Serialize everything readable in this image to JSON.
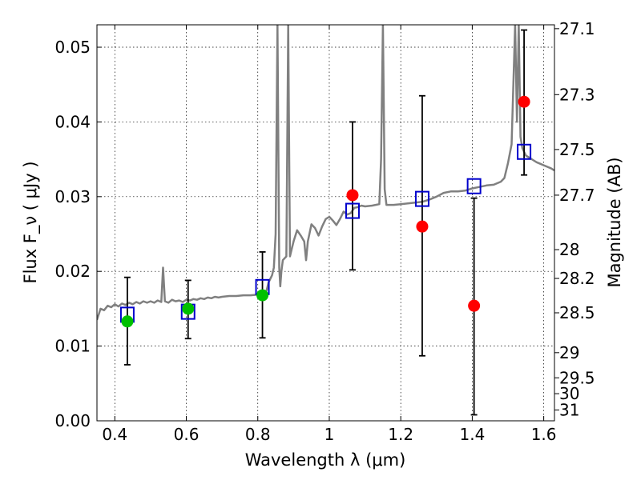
{
  "chart_data": {
    "type": "scatter",
    "xlabel": "Wavelength  λ (μm)",
    "ylabel": "Flux  F_ν  ( μJy )",
    "y2label": "Magnitude (AB)",
    "xlim": [
      0.35,
      1.63
    ],
    "ylim": [
      0.0,
      0.053
    ],
    "grid": true,
    "x_ticks": [
      0.4,
      0.6,
      0.8,
      1.0,
      1.2,
      1.4,
      1.6
    ],
    "x_tick_labels": [
      "0.4",
      "0.6",
      "0.8",
      "1",
      "1.2",
      "1.4",
      "1.6"
    ],
    "y_ticks": [
      0.0,
      0.01,
      0.02,
      0.03,
      0.04,
      0.05
    ],
    "y_tick_labels": [
      "0.00",
      "0.01",
      "0.02",
      "0.03",
      "0.04",
      "0.05"
    ],
    "magnitude_ticks": [
      "27.1",
      "27.3",
      "27.5",
      "27.7",
      "28",
      "28.2",
      "28.5",
      "29",
      "29.5",
      "30",
      "31"
    ],
    "colors": {
      "spectrum": "#808080",
      "green_points": "#00c000",
      "red_points": "#ff0000",
      "model_squares": "#0000cc",
      "error_bars": "#000000"
    },
    "spectrum": {
      "x": [
        0.35,
        0.36,
        0.37,
        0.38,
        0.39,
        0.4,
        0.41,
        0.42,
        0.43,
        0.44,
        0.45,
        0.46,
        0.47,
        0.48,
        0.49,
        0.5,
        0.51,
        0.52,
        0.53,
        0.535,
        0.54,
        0.55,
        0.56,
        0.57,
        0.58,
        0.59,
        0.6,
        0.61,
        0.62,
        0.63,
        0.64,
        0.65,
        0.66,
        0.67,
        0.68,
        0.69,
        0.7,
        0.72,
        0.74,
        0.76,
        0.78,
        0.8,
        0.81,
        0.82,
        0.825,
        0.83,
        0.84,
        0.845,
        0.85,
        0.855,
        0.86,
        0.863,
        0.866,
        0.87,
        0.88,
        0.885,
        0.89,
        0.895,
        0.9,
        0.91,
        0.92,
        0.93,
        0.935,
        0.94,
        0.95,
        0.96,
        0.97,
        0.98,
        0.99,
        1.0,
        1.01,
        1.02,
        1.03,
        1.04,
        1.05,
        1.06,
        1.07,
        1.08,
        1.09,
        1.1,
        1.12,
        1.14,
        1.145,
        1.15,
        1.155,
        1.16,
        1.18,
        1.2,
        1.22,
        1.24,
        1.26,
        1.28,
        1.3,
        1.32,
        1.34,
        1.36,
        1.38,
        1.4,
        1.42,
        1.44,
        1.46,
        1.48,
        1.49,
        1.5,
        1.51,
        1.52,
        1.525,
        1.53,
        1.535,
        1.54,
        1.55,
        1.56,
        1.57,
        1.58,
        1.59,
        1.6,
        1.61,
        1.62,
        1.63
      ],
      "y": [
        0.0135,
        0.015,
        0.0148,
        0.0154,
        0.0152,
        0.0156,
        0.0153,
        0.0157,
        0.0155,
        0.0158,
        0.0156,
        0.0159,
        0.0157,
        0.016,
        0.0158,
        0.016,
        0.0158,
        0.0161,
        0.0159,
        0.0205,
        0.016,
        0.0158,
        0.0162,
        0.016,
        0.0161,
        0.0159,
        0.0162,
        0.0161,
        0.0163,
        0.0162,
        0.0164,
        0.0163,
        0.0165,
        0.0164,
        0.0166,
        0.0165,
        0.0166,
        0.0167,
        0.0167,
        0.0168,
        0.0168,
        0.0169,
        0.017,
        0.0172,
        0.0175,
        0.0185,
        0.0195,
        0.0205,
        0.025,
        0.053,
        0.0205,
        0.018,
        0.02,
        0.0215,
        0.022,
        0.053,
        0.022,
        0.023,
        0.024,
        0.0255,
        0.0248,
        0.024,
        0.0215,
        0.024,
        0.0263,
        0.0258,
        0.0248,
        0.026,
        0.027,
        0.0273,
        0.0268,
        0.0262,
        0.027,
        0.028,
        0.0276,
        0.0278,
        0.0285,
        0.0286,
        0.0288,
        0.0287,
        0.0288,
        0.029,
        0.035,
        0.053,
        0.031,
        0.0289,
        0.0289,
        0.029,
        0.0291,
        0.0292,
        0.0293,
        0.0296,
        0.03,
        0.0305,
        0.0307,
        0.0307,
        0.0308,
        0.0311,
        0.0313,
        0.0315,
        0.0316,
        0.032,
        0.0325,
        0.0345,
        0.037,
        0.053,
        0.04,
        0.053,
        0.038,
        0.0365,
        0.0355,
        0.0352,
        0.0349,
        0.0346,
        0.0344,
        0.0342,
        0.034,
        0.0338,
        0.0335
      ]
    },
    "green_points": [
      {
        "x": 0.435,
        "y": 0.0133,
        "err_low": 0.0075,
        "err_high": 0.0192
      },
      {
        "x": 0.605,
        "y": 0.015,
        "err_low": 0.011,
        "err_high": 0.0188
      },
      {
        "x": 0.813,
        "y": 0.0168,
        "err_low": 0.0111,
        "err_high": 0.0226
      }
    ],
    "red_points": [
      {
        "x": 1.065,
        "y": 0.0302,
        "err_low": 0.0202,
        "err_high": 0.04
      },
      {
        "x": 1.26,
        "y": 0.026,
        "err_low": 0.0087,
        "err_high": 0.0435
      },
      {
        "x": 1.405,
        "y": 0.0154,
        "err_low": 0.0008,
        "err_high": 0.0298
      },
      {
        "x": 1.545,
        "y": 0.0427,
        "err_low": 0.0329,
        "err_high": 0.0523
      }
    ],
    "model_squares": [
      {
        "x": 0.435,
        "y": 0.0142
      },
      {
        "x": 0.605,
        "y": 0.0146
      },
      {
        "x": 0.813,
        "y": 0.0179
      },
      {
        "x": 1.065,
        "y": 0.0281
      },
      {
        "x": 1.26,
        "y": 0.0297
      },
      {
        "x": 1.405,
        "y": 0.0314
      },
      {
        "x": 1.545,
        "y": 0.036
      }
    ]
  }
}
